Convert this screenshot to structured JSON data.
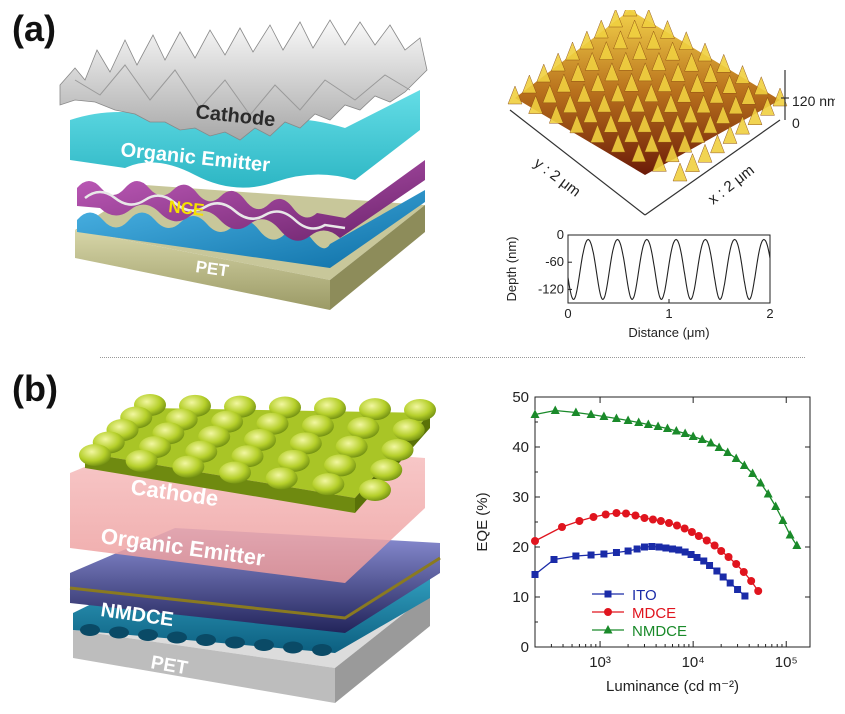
{
  "panel_a": {
    "label": "(a)",
    "layers": {
      "cathode": "Cathode",
      "emitter": "Organic Emitter",
      "nce": "NCE",
      "pet": "PET"
    },
    "afm": {
      "height_top": "120 nm",
      "height_bottom": "0",
      "y_axis": "y : 2 μm",
      "x_axis": "x : 2 μm"
    }
  },
  "panel_b": {
    "label": "(b)",
    "layers": {
      "cathode": "Cathode",
      "emitter": "Organic Emitter",
      "nmdce": "NMDCE",
      "pet": "PET"
    }
  },
  "colors": {
    "ito": "#1a2ba8",
    "mdce": "#e0141e",
    "nmdce": "#1a8a2a"
  },
  "chart_data": [
    {
      "type": "line",
      "xlabel": "Distance (μm)",
      "ylabel": "Depth (nm)",
      "xlim": [
        0,
        2
      ],
      "ylim": [
        -150,
        0
      ],
      "xticks": [
        "0",
        "1",
        "2"
      ],
      "yticks": [
        "0",
        "-60",
        "-120"
      ],
      "period_um": 0.29,
      "x": [
        0,
        0.05,
        0.1,
        0.15,
        0.2,
        0.25,
        0.3,
        0.35,
        0.4,
        0.45,
        0.5,
        0.55,
        0.6,
        0.65,
        0.7,
        0.75,
        0.8,
        0.85,
        0.9,
        0.95,
        1.0,
        1.05,
        1.1,
        1.15,
        1.2,
        1.25,
        1.3,
        1.35,
        1.4,
        1.45,
        1.5,
        1.55,
        1.6,
        1.65,
        1.7,
        1.75,
        1.8,
        1.85,
        1.9,
        1.95,
        2.0
      ],
      "y": [
        -140,
        -135,
        -100,
        -40,
        -10,
        -30,
        -90,
        -140,
        -120,
        -60,
        -5,
        -20,
        -80,
        -135,
        -125,
        -70,
        -5,
        -15,
        -75,
        -135,
        -130,
        -75,
        -8,
        -12,
        -65,
        -130,
        -135,
        -85,
        -12,
        -8,
        -55,
        -125,
        -140,
        -95,
        -18,
        -5,
        -45,
        -115,
        -140,
        -110,
        -25
      ]
    },
    {
      "type": "line",
      "xlabel": "Luminance (cd m⁻²)",
      "ylabel": "EQE (%)",
      "x_scale": "log",
      "xlim": [
        200,
        180000
      ],
      "ylim": [
        0,
        50
      ],
      "xticks": [
        "10³",
        "10⁴",
        "10⁵"
      ],
      "yticks": [
        "0",
        "10",
        "20",
        "30",
        "40",
        "50"
      ],
      "legend": "bottom-center",
      "series": [
        {
          "name": "ITO",
          "marker": "square",
          "x": [
            200,
            320,
            550,
            800,
            1100,
            1500,
            2000,
            2500,
            3000,
            3600,
            4300,
            5100,
            6000,
            7000,
            8200,
            9500,
            11000,
            13000,
            15000,
            18000,
            21000,
            25000,
            30000,
            36000
          ],
          "y": [
            14.5,
            17.5,
            18.2,
            18.4,
            18.6,
            18.9,
            19.2,
            19.6,
            20.0,
            20.1,
            20.0,
            19.8,
            19.6,
            19.4,
            19.0,
            18.5,
            17.9,
            17.2,
            16.3,
            15.2,
            14.0,
            12.8,
            11.5,
            10.2
          ]
        },
        {
          "name": "MDCE",
          "marker": "circle",
          "x": [
            200,
            390,
            600,
            850,
            1150,
            1500,
            1900,
            2400,
            3000,
            3700,
            4500,
            5500,
            6700,
            8100,
            9700,
            11500,
            14000,
            17000,
            20000,
            24000,
            29000,
            35000,
            42000,
            50000
          ],
          "y": [
            21.2,
            24.0,
            25.2,
            26.0,
            26.5,
            26.8,
            26.7,
            26.3,
            25.8,
            25.5,
            25.2,
            24.8,
            24.3,
            23.7,
            23.0,
            22.2,
            21.3,
            20.3,
            19.2,
            18.0,
            16.6,
            15.0,
            13.2,
            11.2
          ]
        },
        {
          "name": "NMDCE",
          "marker": "triangle",
          "x": [
            200,
            330,
            550,
            800,
            1100,
            1500,
            2000,
            2600,
            3300,
            4200,
            5300,
            6600,
            8200,
            10000,
            12500,
            15500,
            19000,
            23500,
            29000,
            35500,
            43500,
            53000,
            64000,
            77000,
            92000,
            110000,
            130000
          ],
          "y": [
            46.5,
            47.3,
            46.9,
            46.5,
            46.1,
            45.7,
            45.3,
            44.9,
            44.5,
            44.1,
            43.7,
            43.2,
            42.7,
            42.1,
            41.5,
            40.8,
            39.9,
            38.9,
            37.7,
            36.3,
            34.7,
            32.8,
            30.6,
            28.1,
            25.3,
            22.4,
            20.3
          ]
        }
      ]
    }
  ]
}
